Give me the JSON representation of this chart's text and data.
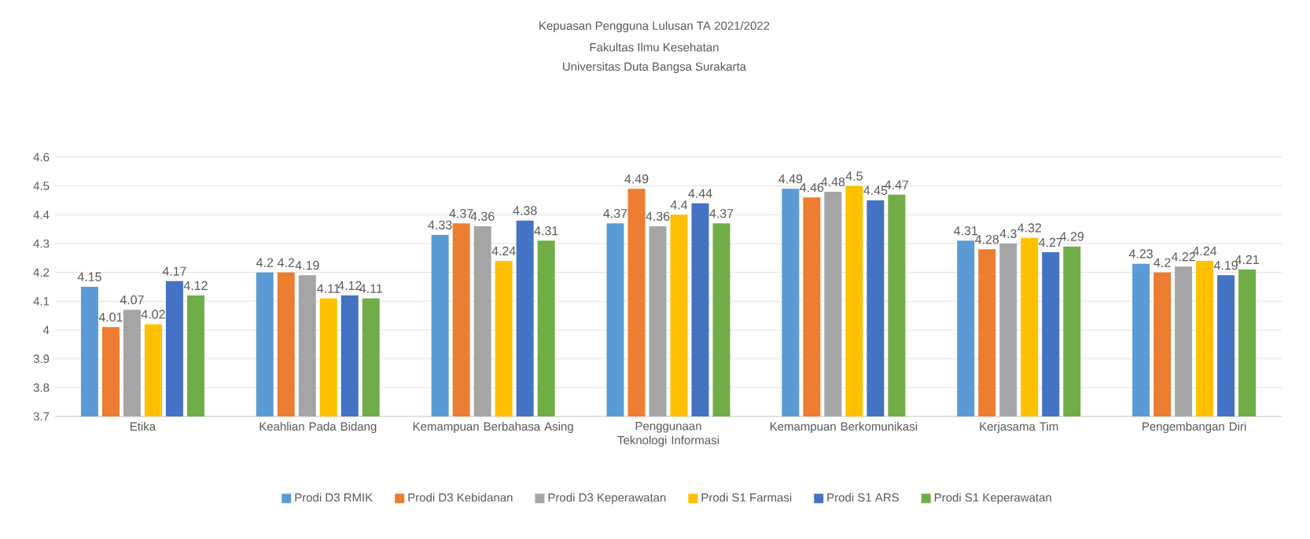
{
  "chart_data": {
    "type": "bar",
    "title": "Kepuasan Pengguna Lulusan TA 2021/2022",
    "subtitle": "Fakultas Ilmu Kesehatan",
    "annotations": [
      "Universitas Duta Bangsa Surakarta"
    ],
    "categories": [
      "Etika",
      "Keahlian Pada Bidang",
      "Kemampuan Berbahasa Asing",
      "Penggunaan Teknologi Informasi",
      "Kemampuan Berkomunikasi",
      "Kerjasama Tim",
      "Pengembangan Diri"
    ],
    "series": [
      {
        "name": "Prodi D3 RMIK",
        "color": "#5b9bd5",
        "values": [
          4.15,
          4.2,
          4.33,
          4.37,
          4.49,
          4.31,
          4.23
        ]
      },
      {
        "name": "Prodi D3 Kebidanan",
        "color": "#ed7d31",
        "values": [
          4.01,
          4.2,
          4.37,
          4.49,
          4.46,
          4.28,
          4.2
        ]
      },
      {
        "name": "Prodi D3 Keperawatan",
        "color": "#a5a5a5",
        "values": [
          4.07,
          4.19,
          4.36,
          4.36,
          4.48,
          4.3,
          4.22
        ]
      },
      {
        "name": "Prodi S1 Farmasi",
        "color": "#ffc000",
        "values": [
          4.02,
          4.11,
          4.24,
          4.4,
          4.5,
          4.32,
          4.24
        ]
      },
      {
        "name": "Prodi S1 ARS",
        "color": "#4472c4",
        "values": [
          4.17,
          4.12,
          4.38,
          4.44,
          4.45,
          4.27,
          4.19
        ]
      },
      {
        "name": "Prodi S1 Keperawatan",
        "color": "#70ad47",
        "values": [
          4.12,
          4.11,
          4.31,
          4.37,
          4.47,
          4.29,
          4.21
        ]
      }
    ],
    "ylim": [
      3.7,
      4.6
    ],
    "yticks": [
      3.7,
      3.8,
      3.9,
      4,
      4.1,
      4.2,
      4.3,
      4.4,
      4.5,
      4.6
    ],
    "grid": "y",
    "legend": "bottom",
    "data_labels": true
  }
}
